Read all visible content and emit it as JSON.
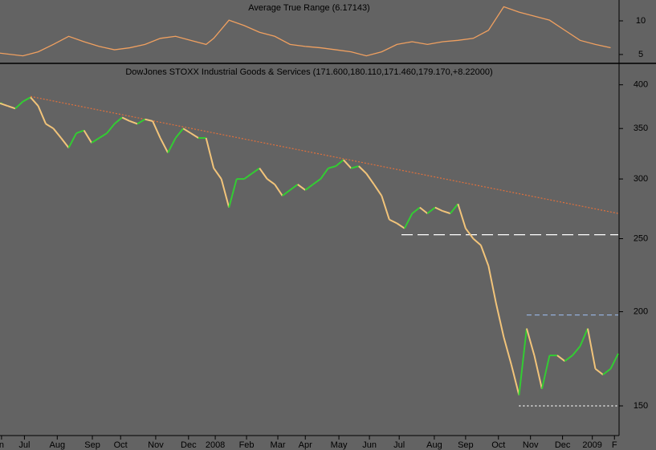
{
  "chart_data": [
    {
      "type": "line",
      "title": "Average True Range (6.17143)",
      "color": "#f0a060",
      "x": [
        0,
        3,
        5,
        7,
        9,
        11,
        13,
        15,
        17,
        19,
        21,
        23,
        25,
        27,
        28,
        30,
        32,
        34,
        36,
        38,
        40,
        42,
        44,
        46,
        48,
        50,
        52,
        54,
        56,
        58,
        60,
        62,
        64,
        66,
        68,
        70,
        72,
        74,
        76,
        78,
        80
      ],
      "values": [
        5.2,
        4.8,
        5.4,
        6.5,
        7.7,
        6.9,
        6.2,
        5.7,
        6.0,
        6.5,
        7.4,
        7.7,
        7.1,
        6.5,
        7.4,
        10.1,
        9.3,
        8.3,
        7.7,
        6.5,
        6.2,
        6.0,
        5.7,
        5.4,
        4.8,
        5.4,
        6.5,
        6.9,
        6.5,
        6.9,
        7.1,
        7.4,
        8.6,
        12.1,
        11.3,
        10.7,
        10.1,
        8.6,
        7.1,
        6.5,
        6.0
      ],
      "xlim": [
        0,
        81
      ],
      "ylim": [
        3.8,
        13.1
      ],
      "yticks": [
        5,
        10
      ]
    },
    {
      "type": "updown",
      "title": "DowJones STOXX Industrial Goods & Services (171.600,180.110,171.460,179.170,+8.22000)",
      "up_color": "#33cc33",
      "down_color": "#f2c47a",
      "log_y": true,
      "x": [
        0,
        1,
        2,
        3,
        4,
        5,
        6,
        7,
        8,
        9,
        10,
        11,
        12,
        13,
        14,
        15,
        16,
        17,
        18,
        19,
        20,
        21,
        22,
        23,
        24,
        25,
        26,
        27,
        28,
        29,
        30,
        31,
        32,
        33,
        34,
        35,
        36,
        37,
        38,
        39,
        40,
        41,
        42,
        43,
        44,
        45,
        46,
        47,
        48,
        49,
        50,
        51,
        52,
        53,
        54,
        55,
        56,
        57,
        58,
        59,
        60,
        61,
        62,
        63,
        64,
        65,
        66,
        67,
        68,
        69,
        70,
        71,
        72,
        73,
        74,
        75,
        76,
        77,
        78,
        79,
        80,
        81
      ],
      "values": [
        378,
        375,
        372,
        380,
        385,
        375,
        355,
        350,
        340,
        330,
        345,
        348,
        335,
        340,
        345,
        355,
        362,
        358,
        355,
        360,
        358,
        340,
        325,
        340,
        350,
        345,
        340,
        340,
        310,
        300,
        275,
        300,
        300,
        305,
        310,
        300,
        295,
        285,
        290,
        295,
        290,
        295,
        300,
        310,
        312,
        318,
        310,
        312,
        305,
        295,
        285,
        265,
        262,
        258,
        270,
        275,
        270,
        275,
        272,
        270,
        278,
        258,
        250,
        245,
        230,
        205,
        185,
        170,
        155,
        190,
        175,
        158,
        175,
        175,
        172,
        175,
        180,
        190,
        168,
        165,
        168,
        176
      ],
      "xlim": [
        0,
        81
      ],
      "ylim": [
        137,
        426
      ],
      "yticks": [
        150,
        200,
        250,
        300,
        350,
        400
      ],
      "xticks": [
        {
          "value": 0.2,
          "label": "n"
        },
        {
          "value": 3.2,
          "label": "Jul"
        },
        {
          "value": 7.5,
          "label": "Aug"
        },
        {
          "value": 12.1,
          "label": "Sep"
        },
        {
          "value": 15.8,
          "label": "Oct"
        },
        {
          "value": 20.4,
          "label": "Nov"
        },
        {
          "value": 24.7,
          "label": "Dec"
        },
        {
          "value": 28.2,
          "label": "2008"
        },
        {
          "value": 32.3,
          "label": "Feb"
        },
        {
          "value": 36.4,
          "label": "Mar"
        },
        {
          "value": 40,
          "label": "Apr"
        },
        {
          "value": 44.4,
          "label": "May"
        },
        {
          "value": 48.4,
          "label": "Jun"
        },
        {
          "value": 52.3,
          "label": "Jul"
        },
        {
          "value": 56.9,
          "label": "Aug"
        },
        {
          "value": 61,
          "label": "Sep"
        },
        {
          "value": 65.3,
          "label": "Oct"
        },
        {
          "value": 69.5,
          "label": "Nov"
        },
        {
          "value": 73.7,
          "label": "Dec"
        },
        {
          "value": 77.6,
          "label": "2009"
        },
        {
          "value": 80.5,
          "label": "F"
        }
      ],
      "lines": [
        {
          "x": [
            4,
            81
          ],
          "y": [
            386,
            270
          ],
          "color": "#e0703c",
          "dash": "2,2"
        },
        {
          "x": [
            52.6,
            81
          ],
          "y": [
            253,
            253
          ],
          "color": "#ffffff",
          "dash": "14,6"
        },
        {
          "x": [
            69,
            81
          ],
          "y": [
            198,
            198
          ],
          "color": "#9ab8e8",
          "dash": "6,4"
        },
        {
          "x": [
            68,
            81
          ],
          "y": [
            150,
            150
          ],
          "color": "#ffffff",
          "dash": "2,3"
        }
      ]
    }
  ]
}
